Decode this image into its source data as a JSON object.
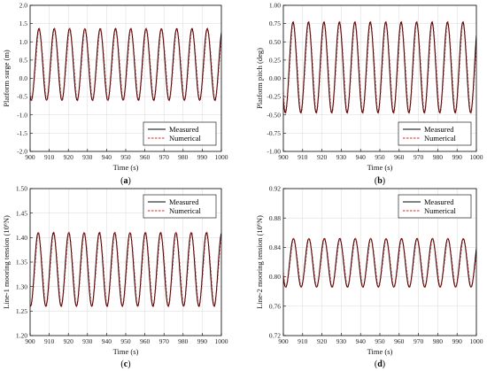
{
  "chart_data": [
    {
      "type": "line",
      "label": "a",
      "xlabel": "Time (s)",
      "ylabel": "Platform surge (m)",
      "xlim": [
        900,
        1000
      ],
      "ylim": [
        -2.0,
        2.0
      ],
      "xticks": [
        "900",
        "910",
        "920",
        "930",
        "940",
        "950",
        "960",
        "970",
        "980",
        "990",
        "1000"
      ],
      "yticks": [
        "-2.0",
        "-1.5",
        "-1.0",
        "-0.5",
        "0.0",
        "0.5",
        "1.0",
        "1.5",
        "2.0"
      ],
      "legend_position": "bottom-right",
      "signal": {
        "period": 8.0,
        "phase_peak_time": 904.6,
        "mean": 0.38,
        "amplitude": 0.98
      },
      "series": [
        {
          "name": "Measured",
          "color": "#000000",
          "style": "solid"
        },
        {
          "name": "Numerical",
          "color": "#e02020",
          "style": "dashed"
        }
      ]
    },
    {
      "type": "line",
      "label": "b",
      "xlabel": "Time (s)",
      "ylabel": "Platform pitch (deg)",
      "xlim": [
        900,
        1000
      ],
      "ylim": [
        -1.0,
        1.0
      ],
      "xticks": [
        "900",
        "910",
        "920",
        "930",
        "940",
        "950",
        "960",
        "970",
        "980",
        "990",
        "1000"
      ],
      "yticks": [
        "-1.00",
        "-0.75",
        "-0.50",
        "-0.25",
        "0.00",
        "0.25",
        "0.50",
        "0.75",
        "1.00"
      ],
      "legend_position": "bottom-right",
      "signal": {
        "period": 8.0,
        "phase_peak_time": 905.0,
        "mean": 0.15,
        "amplitude": 0.62
      },
      "series": [
        {
          "name": "Measured",
          "color": "#000000",
          "style": "solid"
        },
        {
          "name": "Numerical",
          "color": "#e02020",
          "style": "dashed"
        }
      ]
    },
    {
      "type": "line",
      "label": "c",
      "xlabel": "Time (s)",
      "ylabel": "Line-1 mooring tension (10⁶N)",
      "xlim": [
        900,
        1000
      ],
      "ylim": [
        1.2,
        1.5
      ],
      "xticks": [
        "900",
        "910",
        "920",
        "930",
        "940",
        "950",
        "960",
        "970",
        "980",
        "990",
        "1000"
      ],
      "yticks": [
        "1.20",
        "1.25",
        "1.30",
        "1.35",
        "1.40",
        "1.45",
        "1.50"
      ],
      "legend_position": "top-right",
      "signal": {
        "period": 8.0,
        "phase_peak_time": 904.2,
        "mean": 1.335,
        "amplitude": 0.075
      },
      "series": [
        {
          "name": "Measured",
          "color": "#000000",
          "style": "solid"
        },
        {
          "name": "Numerical",
          "color": "#e02020",
          "style": "dashed"
        }
      ]
    },
    {
      "type": "line",
      "label": "d",
      "xlabel": "Time (s)",
      "ylabel": "Line-2 mooring tension (10⁶N)",
      "xlim": [
        900,
        1000
      ],
      "ylim": [
        0.72,
        0.92
      ],
      "xticks": [
        "900",
        "910",
        "920",
        "930",
        "940",
        "950",
        "960",
        "970",
        "980",
        "990",
        "1000"
      ],
      "yticks": [
        "0.72",
        "0.76",
        "0.80",
        "0.84",
        "0.88",
        "0.92"
      ],
      "legend_position": "top-right",
      "signal": {
        "period": 8.0,
        "phase_peak_time": 905.2,
        "mean": 0.819,
        "amplitude": 0.033
      },
      "series": [
        {
          "name": "Measured",
          "color": "#000000",
          "style": "solid"
        },
        {
          "name": "Numerical",
          "color": "#e02020",
          "style": "dashed"
        }
      ]
    }
  ]
}
